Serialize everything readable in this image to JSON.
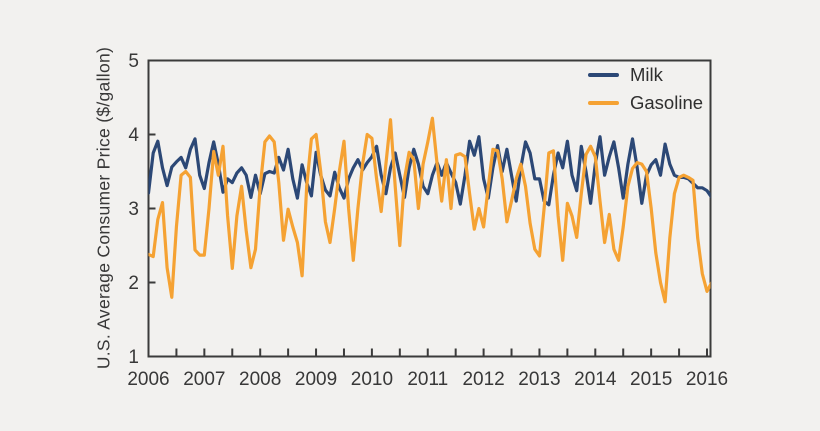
{
  "figure": {
    "background_color": "#f2f1ef",
    "axis_color": "#3b3b3b",
    "text_color": "#383838"
  },
  "y_axis": {
    "label": "U.S. Average Consumer Price ($/gallon)",
    "tick_labels": [
      "1",
      "2",
      "3",
      "4",
      "5"
    ],
    "tick_values": [
      1,
      2,
      3,
      4,
      5
    ],
    "range": [
      1,
      5
    ]
  },
  "x_axis": {
    "tick_labels": [
      "2006",
      "2007",
      "2008",
      "2009",
      "2010",
      "2011",
      "2012",
      "2013",
      "2014",
      "2015",
      "2016"
    ],
    "tick_values": [
      2006,
      2007,
      2008,
      2009,
      2010,
      2011,
      2012,
      2013,
      2014,
      2015,
      2016
    ],
    "minor_ticks_per_year": 2,
    "range": [
      2006,
      2016.17
    ]
  },
  "legend": {
    "position": "top-right-inside",
    "items": [
      {
        "label": "Milk",
        "color": "#2c4876"
      },
      {
        "label": "Gasoline",
        "color": "#f5a233"
      }
    ]
  },
  "chart_data": {
    "type": "line",
    "title": "",
    "xlabel": "",
    "ylabel": "U.S. Average Consumer Price ($/gallon)",
    "ylim": [
      1,
      5
    ],
    "grid": false,
    "x_start": "2006-01",
    "x_step": "1 month",
    "series": [
      {
        "name": "Milk",
        "color": "#2c4876",
        "values": [
          3.21,
          3.75,
          3.91,
          3.55,
          3.31,
          3.56,
          3.63,
          3.69,
          3.55,
          3.8,
          3.94,
          3.45,
          3.27,
          3.62,
          3.9,
          3.6,
          3.22,
          3.4,
          3.35,
          3.48,
          3.55,
          3.45,
          3.15,
          3.45,
          3.2,
          3.47,
          3.5,
          3.48,
          3.69,
          3.52,
          3.8,
          3.4,
          3.14,
          3.59,
          3.35,
          3.17,
          3.76,
          3.45,
          3.25,
          3.17,
          3.49,
          3.28,
          3.14,
          3.4,
          3.55,
          3.66,
          3.52,
          3.62,
          3.7,
          3.84,
          3.45,
          3.2,
          3.55,
          3.75,
          3.45,
          3.15,
          3.55,
          3.8,
          3.6,
          3.3,
          3.2,
          3.45,
          3.62,
          3.45,
          3.62,
          3.48,
          3.35,
          3.06,
          3.45,
          3.91,
          3.72,
          3.97,
          3.4,
          3.14,
          3.55,
          3.85,
          3.5,
          3.8,
          3.45,
          3.1,
          3.55,
          3.9,
          3.75,
          3.4,
          3.4,
          3.1,
          3.05,
          3.45,
          3.75,
          3.55,
          3.91,
          3.45,
          3.24,
          3.84,
          3.5,
          3.07,
          3.6,
          3.97,
          3.45,
          3.7,
          3.9,
          3.55,
          3.14,
          3.6,
          3.94,
          3.55,
          3.07,
          3.45,
          3.59,
          3.66,
          3.45,
          3.87,
          3.6,
          3.45,
          3.42,
          3.42,
          3.4,
          3.34,
          3.28,
          3.28,
          3.24,
          3.15
        ]
      },
      {
        "name": "Gasoline",
        "color": "#f5a233",
        "values": [
          2.38,
          2.35,
          2.85,
          3.08,
          2.2,
          1.8,
          2.75,
          3.45,
          3.5,
          3.42,
          2.44,
          2.37,
          2.37,
          3.0,
          3.77,
          3.45,
          3.84,
          2.9,
          2.19,
          2.9,
          3.3,
          2.7,
          2.2,
          2.45,
          3.3,
          3.9,
          3.98,
          3.9,
          3.35,
          2.57,
          2.99,
          2.75,
          2.54,
          2.09,
          3.3,
          3.94,
          4.0,
          3.5,
          2.82,
          2.54,
          3.0,
          3.5,
          3.91,
          3.0,
          2.3,
          3.0,
          3.6,
          4.0,
          3.95,
          3.4,
          2.96,
          3.6,
          4.2,
          3.3,
          2.5,
          3.4,
          3.76,
          3.66,
          3.0,
          3.6,
          3.9,
          4.22,
          3.6,
          3.1,
          3.66,
          3.0,
          3.72,
          3.74,
          3.7,
          3.2,
          2.72,
          3.0,
          2.75,
          3.3,
          3.8,
          3.78,
          3.4,
          2.82,
          3.1,
          3.4,
          3.6,
          3.3,
          2.8,
          2.45,
          2.36,
          3.0,
          3.75,
          3.78,
          2.9,
          2.3,
          3.07,
          2.9,
          2.61,
          3.2,
          3.73,
          3.84,
          3.7,
          3.1,
          2.54,
          2.92,
          2.45,
          2.3,
          2.75,
          3.3,
          3.54,
          3.62,
          3.6,
          3.5,
          3.0,
          2.4,
          2.0,
          1.74,
          2.6,
          3.2,
          3.42,
          3.45,
          3.42,
          3.38,
          2.6,
          2.12,
          1.88,
          2.0
        ]
      }
    ]
  }
}
